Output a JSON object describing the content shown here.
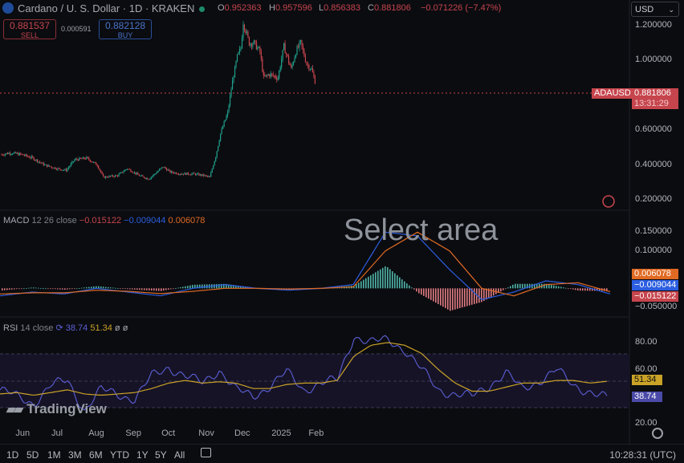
{
  "header": {
    "title": "Cardano / U. S. Dollar · 1D · KRAKEN",
    "ohlc": [
      {
        "key": "O",
        "value": "0.952363"
      },
      {
        "key": "H",
        "value": "0.957596"
      },
      {
        "key": "L",
        "value": "0.856383"
      },
      {
        "key": "C",
        "value": "0.881806"
      }
    ],
    "change": "−0.071226 (−7.47%)",
    "currency": "USD"
  },
  "trade": {
    "sell_price": "0.881537",
    "sell_label": "SELL",
    "spread": "0.000591",
    "buy_price": "0.882128",
    "buy_label": "BUY"
  },
  "overlay_text": "Select area",
  "brand": "TradingView",
  "colors": {
    "up": "#1f9e89",
    "down": "#c6454d",
    "macd": "#2c5ee0",
    "signal": "#e06a23",
    "rsi": "#5c5fd6",
    "rsi_ma": "#c9a227"
  },
  "bottom_bar": {
    "timeframes": [
      "1D",
      "5D",
      "1M",
      "3M",
      "6M",
      "YTD",
      "1Y",
      "5Y",
      "All"
    ],
    "clock": "10:28:31 (UTC)"
  },
  "chart_data": [
    {
      "type": "candlestick",
      "symbol": "ADAUSD",
      "last_price": "0.881806",
      "countdown": "13:31:29",
      "x_tick_labels": [
        "Jun",
        "Jul",
        "Aug",
        "Sep",
        "Oct",
        "Nov",
        "Dec",
        "2025",
        "Feb"
      ],
      "y_tick_labels": [
        "1.200000",
        "1.000000",
        "0.600000",
        "0.400000",
        "0.200000"
      ],
      "ylim": [
        0.15,
        1.3
      ],
      "close_path": [
        [
          "May 15",
          0.46
        ],
        [
          "May 22",
          0.47
        ],
        [
          "Jun 1",
          0.46
        ],
        [
          "Jun 10",
          0.44
        ],
        [
          "Jun 20",
          0.4
        ],
        [
          "Jun 30",
          0.38
        ],
        [
          "Jul 8",
          0.37
        ],
        [
          "Jul 15",
          0.43
        ],
        [
          "Jul 25",
          0.44
        ],
        [
          "Aug 3",
          0.4
        ],
        [
          "Aug 8",
          0.33
        ],
        [
          "Aug 20",
          0.34
        ],
        [
          "Aug 28",
          0.38
        ],
        [
          "Sep 7",
          0.34
        ],
        [
          "Sep 15",
          0.32
        ],
        [
          "Sep 27",
          0.39
        ],
        [
          "Oct 3",
          0.36
        ],
        [
          "Oct 12",
          0.35
        ],
        [
          "Oct 22",
          0.35
        ],
        [
          "Oct 31",
          0.34
        ],
        [
          "Nov 5",
          0.33
        ],
        [
          "Nov 10",
          0.45
        ],
        [
          "Nov 14",
          0.58
        ],
        [
          "Nov 20",
          0.7
        ],
        [
          "Nov 24",
          0.88
        ],
        [
          "Nov 28",
          1.02
        ],
        [
          "Dec 1",
          1.07
        ],
        [
          "Dec 3",
          1.22
        ],
        [
          "Dec 8",
          1.1
        ],
        [
          "Dec 12",
          1.1
        ],
        [
          "Dec 17",
          1.05
        ],
        [
          "Dec 20",
          0.9
        ],
        [
          "Dec 25",
          0.92
        ],
        [
          "Jan 1",
          0.9
        ],
        [
          "Jan 6",
          1.08
        ],
        [
          "Jan 12",
          0.95
        ],
        [
          "Jan 16",
          1.05
        ],
        [
          "Jan 20",
          1.1
        ],
        [
          "Jan 25",
          0.98
        ],
        [
          "Jan 29",
          0.95
        ],
        [
          "Feb 1",
          0.88
        ]
      ]
    },
    {
      "type": "bar",
      "title": "MACD",
      "params": "12 26 close",
      "values_readout": [
        "−0.015122",
        "−0.009044",
        "0.006078"
      ],
      "y_tick_labels": [
        "0.150000",
        "0.100000",
        "−0.050000"
      ],
      "ylim": [
        -0.07,
        0.17
      ],
      "series": [
        {
          "values": [
            -0.02,
            -0.01,
            -0.015,
            0.0,
            -0.01,
            -0.02,
            0.0,
            0.01,
            0.0,
            -0.005,
            0.0,
            0.01,
            0.15,
            0.14,
            0.05,
            -0.03,
            -0.01,
            0.02,
            0.01,
            -0.015
          ]
        },
        {
          "values": [
            -0.015,
            -0.012,
            -0.012,
            -0.005,
            -0.008,
            -0.014,
            -0.008,
            0.0,
            0.0,
            -0.002,
            0.0,
            0.004,
            0.1,
            0.15,
            0.1,
            0.0,
            -0.02,
            0.01,
            0.015,
            -0.009
          ]
        }
      ]
    },
    {
      "type": "line",
      "title": "RSI",
      "params": "14 close",
      "values_readout": [
        "38.74",
        "51.34"
      ],
      "y_tick_labels": [
        "80.00",
        "60.00",
        "20.00"
      ],
      "ylim": [
        20,
        90
      ],
      "series": [
        {
          "values": [
            45,
            40,
            35,
            48,
            52,
            30,
            45,
            42,
            38,
            55,
            62,
            55,
            50,
            60,
            45,
            40,
            48,
            58,
            45,
            50,
            52,
            85,
            80,
            82,
            75,
            60,
            45,
            42,
            40,
            48,
            58,
            45,
            52,
            60,
            48,
            44,
            38.74
          ]
        },
        {
          "values": [
            42,
            43,
            41,
            43,
            45,
            42,
            41,
            42,
            43,
            46,
            50,
            52,
            50,
            51,
            50,
            46,
            46,
            49,
            50,
            50,
            52,
            70,
            78,
            80,
            78,
            72,
            60,
            50,
            44,
            44,
            47,
            50,
            50,
            52,
            52,
            50,
            51.34
          ]
        }
      ]
    }
  ]
}
